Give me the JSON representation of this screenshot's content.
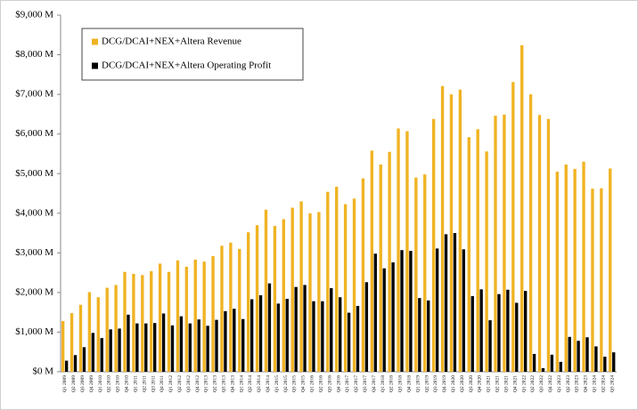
{
  "chart_data": {
    "type": "bar",
    "categories": [
      "Q1 2009",
      "Q2 2009",
      "Q3 2009",
      "Q4 2009",
      "Q1 2010",
      "Q2 2010",
      "Q3 2010",
      "Q4 2010",
      "Q1 2011",
      "Q2 2011",
      "Q3 2011",
      "Q4 2011",
      "Q1 2012",
      "Q2 2012",
      "Q3 2012",
      "Q4 2012",
      "Q1 2013",
      "Q2 2013",
      "Q3 2013",
      "Q4 2013",
      "Q1 2014",
      "Q2 2014",
      "Q3 2014",
      "Q4 2014",
      "Q1 2015",
      "Q2 2015",
      "Q3 2015",
      "Q4 2015",
      "Q1 2016",
      "Q2 2016",
      "Q3 2016",
      "Q4 2016",
      "Q1 2017",
      "Q2 2017",
      "Q3 2017",
      "Q4 2017",
      "Q1 2018",
      "Q2 2018",
      "Q3 2018",
      "Q4 2018",
      "Q1 2019",
      "Q2 2019",
      "Q3 2019",
      "Q4 2019",
      "Q1 2020",
      "Q2 2020",
      "Q3 2020",
      "Q4 2020",
      "Q1 2021",
      "Q2 2021",
      "Q3 2021",
      "Q4 2021",
      "Q1 2022",
      "Q2 2022",
      "Q3 2022",
      "Q4 2022",
      "Q1 2023",
      "Q2 2023",
      "Q3 2023",
      "Q4 2023",
      "Q1 2024",
      "Q2 2024",
      "Q3 2024"
    ],
    "series": [
      {
        "name": "DCG/DCAI+NEX+Altera Revenue",
        "color": "#f0b323",
        "values": [
          1280,
          1480,
          1690,
          2010,
          1880,
          2120,
          2190,
          2520,
          2470,
          2440,
          2540,
          2730,
          2520,
          2810,
          2650,
          2830,
          2780,
          2920,
          3180,
          3260,
          3100,
          3520,
          3700,
          4090,
          3680,
          3850,
          4140,
          4300,
          4000,
          4030,
          4540,
          4670,
          4230,
          4370,
          4880,
          5580,
          5230,
          5550,
          6140,
          6070,
          4900,
          4980,
          6380,
          7210,
          7000,
          7120,
          5920,
          6120,
          5560,
          6460,
          6490,
          7310,
          8240,
          7000,
          6480,
          6380,
          5050,
          5230,
          5120,
          5300,
          4620,
          4630,
          5130
        ]
      },
      {
        "name": "DCG/DCAI+NEX+Altera Operating Profit",
        "color": "#000000",
        "values": [
          280,
          420,
          620,
          980,
          850,
          1070,
          1090,
          1440,
          1220,
          1220,
          1230,
          1470,
          1170,
          1400,
          1220,
          1320,
          1160,
          1310,
          1530,
          1590,
          1330,
          1830,
          1930,
          2230,
          1720,
          1840,
          2140,
          2190,
          1780,
          1780,
          2110,
          1880,
          1490,
          1660,
          2260,
          2980,
          2610,
          2760,
          3070,
          3050,
          1860,
          1800,
          3110,
          3470,
          3500,
          3090,
          1910,
          2080,
          1300,
          1960,
          2070,
          1740,
          2040,
          450,
          90,
          430,
          250,
          880,
          780,
          870,
          640,
          380,
          490
        ]
      }
    ],
    "ylim": [
      0,
      9000
    ],
    "yticks": [
      {
        "value": 0,
        "label": "$0 M"
      },
      {
        "value": 1000,
        "label": "$1,000 M"
      },
      {
        "value": 2000,
        "label": "$2,000 M"
      },
      {
        "value": 3000,
        "label": "$3,000 M"
      },
      {
        "value": 4000,
        "label": "$4,000 M"
      },
      {
        "value": 5000,
        "label": "$5,000 M"
      },
      {
        "value": 6000,
        "label": "$6,000 M"
      },
      {
        "value": 7000,
        "label": "$7,000 M"
      },
      {
        "value": 8000,
        "label": "$8,000 M"
      },
      {
        "value": 9000,
        "label": "$9,000 M"
      }
    ],
    "legend": "top-left"
  }
}
